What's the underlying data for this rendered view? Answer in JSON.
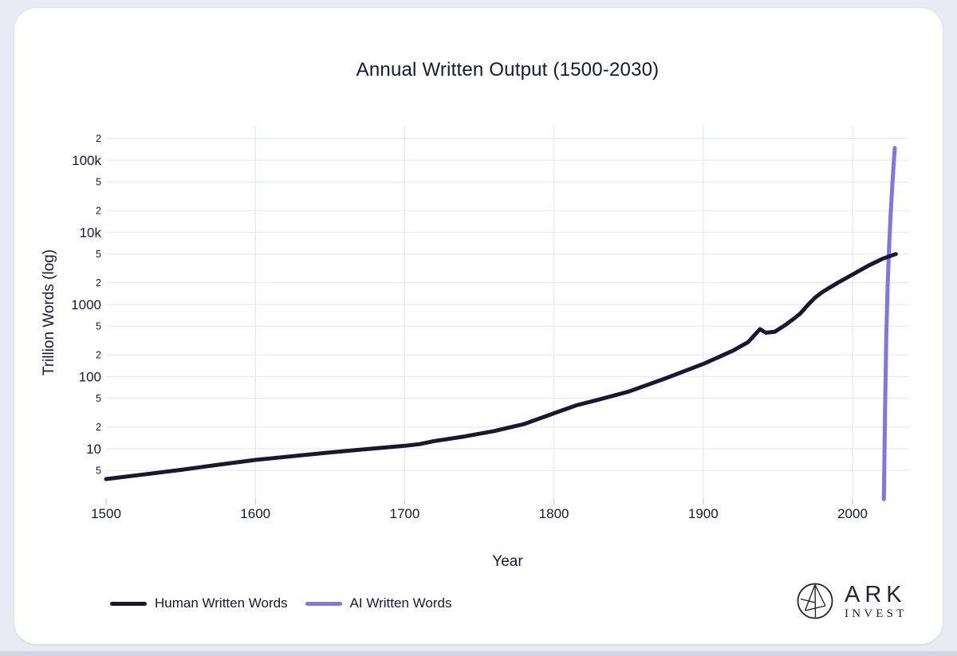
{
  "page": {
    "title": "Annual Written Output (1500-2030)"
  },
  "axes": {
    "x_label": "Year",
    "y_label": "Trillion Words (log)"
  },
  "legend": {
    "items": [
      {
        "label": "Human Written Words",
        "color": "#1b1733"
      },
      {
        "label": "AI Written Words",
        "color": "#8173e8"
      }
    ]
  },
  "branding": {
    "name_line1": "ARK",
    "name_line2": "INVEST"
  },
  "colors": {
    "background": "#e9ebf4",
    "card": "#ffffff",
    "text": "#15183a",
    "gridline": "#e9eaf2",
    "tick": "#cdd0dc",
    "human_line": "#1b1733",
    "ai_line": "#8173e8"
  },
  "chart_data": {
    "type": "line",
    "title": "Annual Written Output (1500-2030)",
    "xlabel": "Year",
    "ylabel": "Trillion Words (log)",
    "x_range": [
      1500,
      2038
    ],
    "y_scale": "log",
    "y_range": [
      2,
      220000
    ],
    "grid": true,
    "legend_position": "bottom-left",
    "x_ticks": [
      {
        "value": 1500,
        "label": "1500"
      },
      {
        "value": 1600,
        "label": "1600"
      },
      {
        "value": 1700,
        "label": "1700"
      },
      {
        "value": 1800,
        "label": "1800"
      },
      {
        "value": 1900,
        "label": "1900"
      },
      {
        "value": 2000,
        "label": "2000"
      }
    ],
    "y_ticks": [
      {
        "value": 200000,
        "label": "2",
        "major": false
      },
      {
        "value": 100000,
        "label": "100k",
        "major": true
      },
      {
        "value": 50000,
        "label": "5",
        "major": false
      },
      {
        "value": 20000,
        "label": "2",
        "major": false
      },
      {
        "value": 10000,
        "label": "10k",
        "major": true
      },
      {
        "value": 5000,
        "label": "5",
        "major": false
      },
      {
        "value": 2000,
        "label": "2",
        "major": false
      },
      {
        "value": 1000,
        "label": "1000",
        "major": true
      },
      {
        "value": 500,
        "label": "5",
        "major": false
      },
      {
        "value": 200,
        "label": "2",
        "major": false
      },
      {
        "value": 100,
        "label": "100",
        "major": true
      },
      {
        "value": 50,
        "label": "5",
        "major": false
      },
      {
        "value": 20,
        "label": "2",
        "major": false
      },
      {
        "value": 10,
        "label": "10",
        "major": true
      },
      {
        "value": 5,
        "label": "5",
        "major": false
      }
    ],
    "series": [
      {
        "name": "AI Written Words",
        "color": "#8173e8",
        "points": [
          [
            2021.0,
            2
          ],
          [
            2021.8,
            35
          ],
          [
            2022.6,
            350
          ],
          [
            2023.5,
            1800
          ],
          [
            2024.5,
            6500
          ],
          [
            2025.5,
            17000
          ],
          [
            2026.5,
            40000
          ],
          [
            2027.4,
            80000
          ],
          [
            2028.3,
            148000
          ]
        ]
      },
      {
        "name": "Human Written Words",
        "color": "#1b1733",
        "points": [
          [
            1500,
            3.8
          ],
          [
            1525,
            4.4
          ],
          [
            1550,
            5.1
          ],
          [
            1575,
            6.0
          ],
          [
            1600,
            7.0
          ],
          [
            1625,
            7.9
          ],
          [
            1650,
            8.9
          ],
          [
            1675,
            9.9
          ],
          [
            1700,
            11
          ],
          [
            1710,
            11.6
          ],
          [
            1720,
            12.8
          ],
          [
            1740,
            14.8
          ],
          [
            1760,
            17.6
          ],
          [
            1780,
            22
          ],
          [
            1800,
            31
          ],
          [
            1815,
            40
          ],
          [
            1830,
            48
          ],
          [
            1850,
            62
          ],
          [
            1875,
            95
          ],
          [
            1900,
            150
          ],
          [
            1910,
            185
          ],
          [
            1920,
            230
          ],
          [
            1930,
            300
          ],
          [
            1938,
            455
          ],
          [
            1942,
            405
          ],
          [
            1948,
            420
          ],
          [
            1955,
            520
          ],
          [
            1960,
            620
          ],
          [
            1965,
            750
          ],
          [
            1970,
            980
          ],
          [
            1975,
            1250
          ],
          [
            1980,
            1500
          ],
          [
            1990,
            2000
          ],
          [
            2000,
            2600
          ],
          [
            2010,
            3400
          ],
          [
            2020,
            4300
          ],
          [
            2029,
            5000
          ]
        ]
      }
    ]
  }
}
